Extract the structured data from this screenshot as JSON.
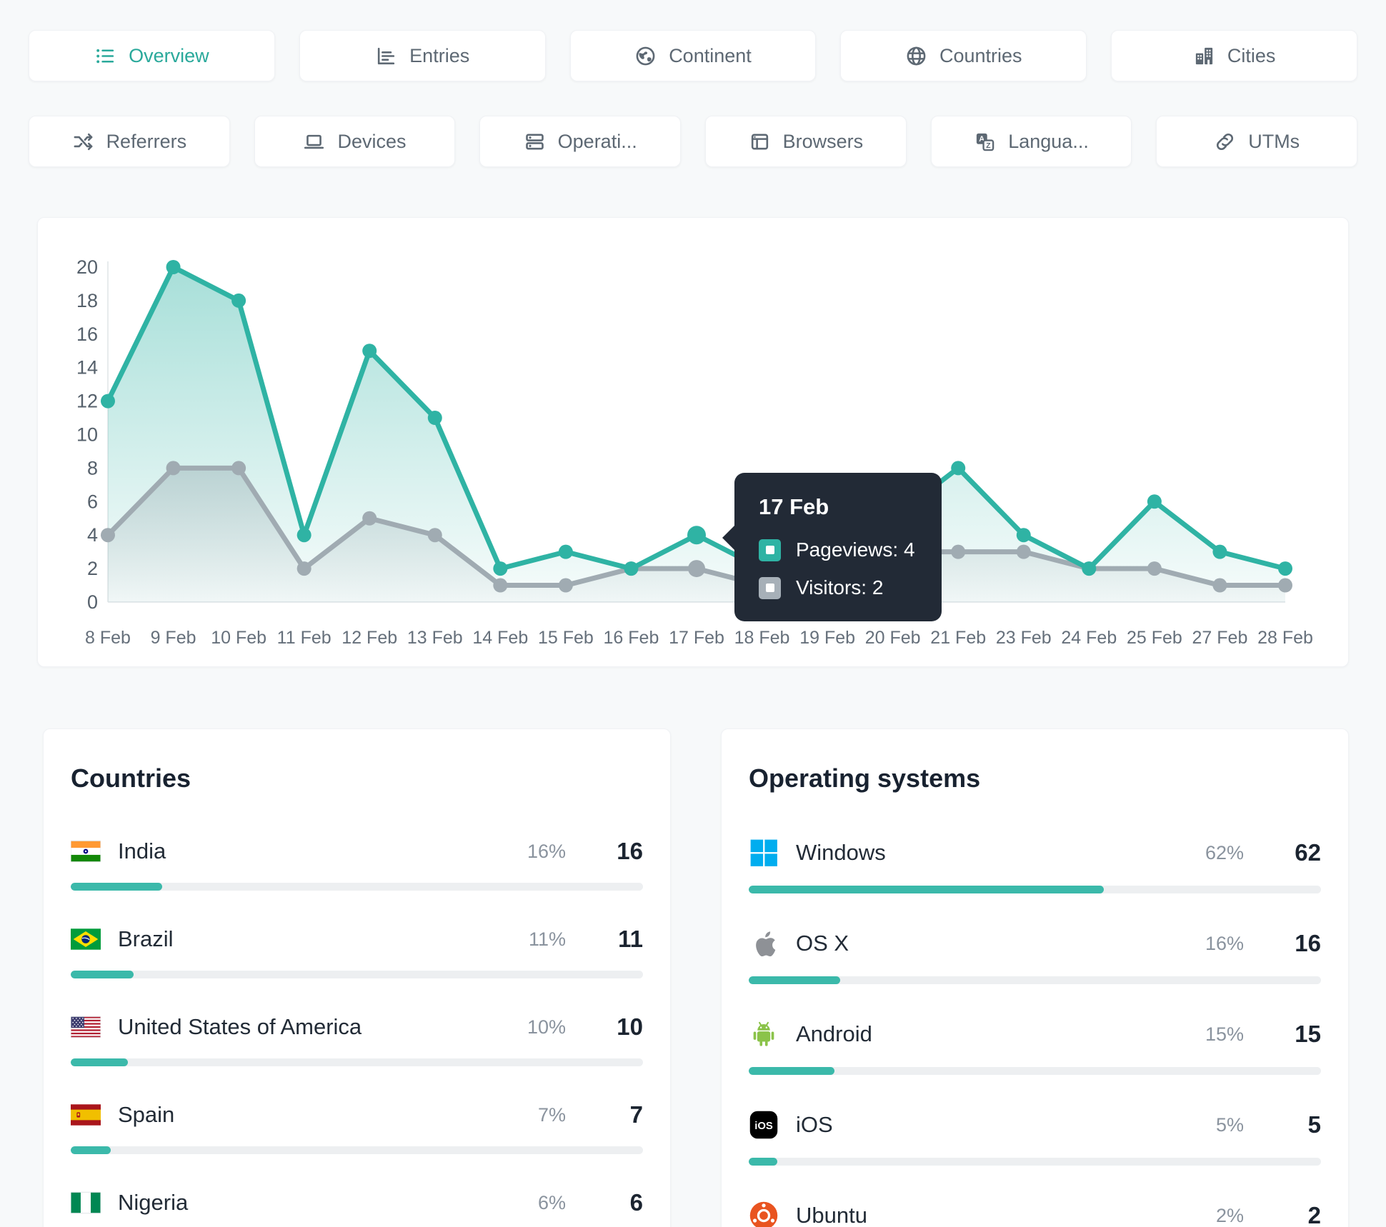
{
  "theme": {
    "accent": "#2fb3a4",
    "visitors_color": "#a0abb2",
    "tooltip_bg": "#222a36",
    "bar_fill": "#3bb9aa",
    "bar_track": "#edeff1"
  },
  "nav": {
    "row1": [
      {
        "label": "Overview",
        "icon": "list-icon",
        "active": true
      },
      {
        "label": "Entries",
        "icon": "bar-chart-icon",
        "active": false
      },
      {
        "label": "Continent",
        "icon": "earth-icon",
        "active": false
      },
      {
        "label": "Countries",
        "icon": "globe-icon",
        "active": false
      },
      {
        "label": "Cities",
        "icon": "buildings-icon",
        "active": false
      }
    ],
    "row2": [
      {
        "label": "Referrers",
        "icon": "shuffle-icon",
        "active": false
      },
      {
        "label": "Devices",
        "icon": "laptop-icon",
        "active": false
      },
      {
        "label": "Operati...",
        "icon": "server-icon",
        "active": false
      },
      {
        "label": "Browsers",
        "icon": "browser-icon",
        "active": false
      },
      {
        "label": "Langua...",
        "icon": "translate-icon",
        "active": false
      },
      {
        "label": "UTMs",
        "icon": "link-icon",
        "active": false
      }
    ]
  },
  "chart_data": {
    "type": "line",
    "x": [
      "8 Feb",
      "9 Feb",
      "10 Feb",
      "11 Feb",
      "12 Feb",
      "13 Feb",
      "14 Feb",
      "15 Feb",
      "16 Feb",
      "17 Feb",
      "18 Feb",
      "19 Feb",
      "20 Feb",
      "21 Feb",
      "23 Feb",
      "24 Feb",
      "25 Feb",
      "27 Feb",
      "28 Feb"
    ],
    "series": [
      {
        "name": "Pageviews",
        "color": "#2fb3a4",
        "values": [
          12,
          20,
          18,
          4,
          15,
          11,
          2,
          3,
          2,
          4,
          2,
          3,
          5,
          8,
          4,
          2,
          6,
          3,
          2
        ]
      },
      {
        "name": "Visitors",
        "color": "#a0abb2",
        "values": [
          4,
          8,
          8,
          2,
          5,
          4,
          1,
          1,
          2,
          2,
          1,
          2,
          3,
          3,
          3,
          2,
          2,
          1,
          1
        ]
      }
    ],
    "ylim": [
      0,
      20
    ],
    "yticks": [
      0,
      2,
      4,
      6,
      8,
      10,
      12,
      14,
      16,
      18,
      20
    ],
    "grid": "off",
    "legend": "none",
    "highlight_index": 9
  },
  "tooltip": {
    "title": "17 Feb",
    "rows": [
      {
        "label": "Pageviews: 4",
        "color": "#2fb3a4"
      },
      {
        "label": "Visitors: 2",
        "color": "#a7b0b8"
      }
    ]
  },
  "panels": [
    {
      "title": "Countries",
      "items": [
        {
          "name": "India",
          "icon": "india-flag-icon",
          "pct_label": "16%",
          "pct": 16,
          "value": "16"
        },
        {
          "name": "Brazil",
          "icon": "brazil-flag-icon",
          "pct_label": "11%",
          "pct": 11,
          "value": "11"
        },
        {
          "name": "United States of America",
          "icon": "usa-flag-icon",
          "pct_label": "10%",
          "pct": 10,
          "value": "10"
        },
        {
          "name": "Spain",
          "icon": "spain-flag-icon",
          "pct_label": "7%",
          "pct": 7,
          "value": "7"
        },
        {
          "name": "Nigeria",
          "icon": "nigeria-flag-icon",
          "pct_label": "6%",
          "pct": 6,
          "value": "6"
        }
      ]
    },
    {
      "title": "Operating systems",
      "items": [
        {
          "name": "Windows",
          "icon": "windows-icon",
          "pct_label": "62%",
          "pct": 62,
          "value": "62"
        },
        {
          "name": "OS X",
          "icon": "apple-icon",
          "pct_label": "16%",
          "pct": 16,
          "value": "16"
        },
        {
          "name": "Android",
          "icon": "android-icon",
          "pct_label": "15%",
          "pct": 15,
          "value": "15"
        },
        {
          "name": "iOS",
          "icon": "ios-icon",
          "pct_label": "5%",
          "pct": 5,
          "value": "5"
        },
        {
          "name": "Ubuntu",
          "icon": "ubuntu-icon",
          "pct_label": "2%",
          "pct": 2,
          "value": "2"
        }
      ]
    }
  ]
}
